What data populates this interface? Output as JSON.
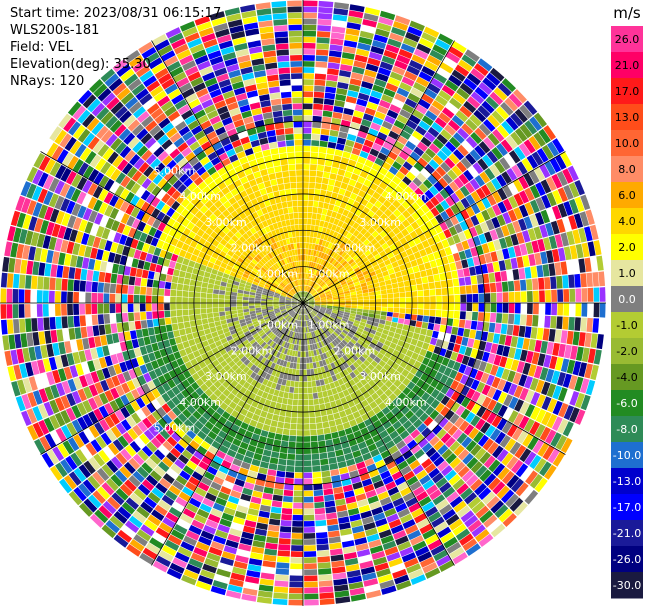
{
  "info": {
    "start_time": "Start time: 2023/08/31 06:15:17",
    "instrument": "WLS200s-181",
    "field": "Field: VEL",
    "elevation": "Elevation(deg): 35.30",
    "nrays": "NRays: 120"
  },
  "chart_data": {
    "type": "heatmap",
    "projection": "polar-ppi",
    "field": "VEL",
    "units": "m/s",
    "elevation_deg": 35.3,
    "nrays": 120,
    "range_rings_km": [
      1.0,
      2.0,
      3.0,
      4.0,
      5.0
    ],
    "range_ring_labels": [
      "1.00km",
      "2.00km",
      "3.00km",
      "4.00km",
      "5.00km"
    ],
    "max_range_km": 5.0,
    "colorbar": {
      "label": "m/s",
      "tick_labels": [
        "26.0",
        "21.0",
        "17.0",
        "13.0",
        "10.0",
        "8.0",
        "6.0",
        "4.0",
        "2.0",
        "1.0",
        "0.0",
        "-1.0",
        "-2.0",
        "-4.0",
        "-6.0",
        "-8.0",
        "-10.0",
        "-13.0",
        "-17.0",
        "-21.0",
        "-26.0",
        "-30.0"
      ],
      "colors": [
        "#ff3399",
        "#ff0066",
        "#ff1a1a",
        "#ff4d1a",
        "#ff6633",
        "#ff8c66",
        "#ffaa00",
        "#ffd700",
        "#ffff00",
        "#e6e6a0",
        "#7f7f7f",
        "#b3cc33",
        "#99bb33",
        "#669922",
        "#228b22",
        "#2e8b57",
        "#1e6fd0",
        "#0000cd",
        "#0000ff",
        "#1a1a99",
        "#000080",
        "#1a1a40"
      ]
    },
    "regions": [
      {
        "description": "positive velocity (away)",
        "azimuth_deg": [
          290,
          95
        ],
        "range_km": [
          0.2,
          2.6
        ],
        "value_range": [
          2,
          8
        ]
      },
      {
        "description": "near-zero velocity band",
        "azimuth_deg": [
          100,
          300
        ],
        "range_km": [
          0.0,
          2.2
        ],
        "value_range": [
          -1,
          1
        ]
      },
      {
        "description": "negative velocity (toward)",
        "azimuth_deg": [
          110,
          260
        ],
        "range_km": [
          0.2,
          2.8
        ],
        "value_range": [
          -8,
          -2
        ]
      },
      {
        "description": "noise / speckle",
        "range_km": [
          2.6,
          5.0
        ],
        "value_range": [
          -30,
          26
        ]
      }
    ]
  }
}
